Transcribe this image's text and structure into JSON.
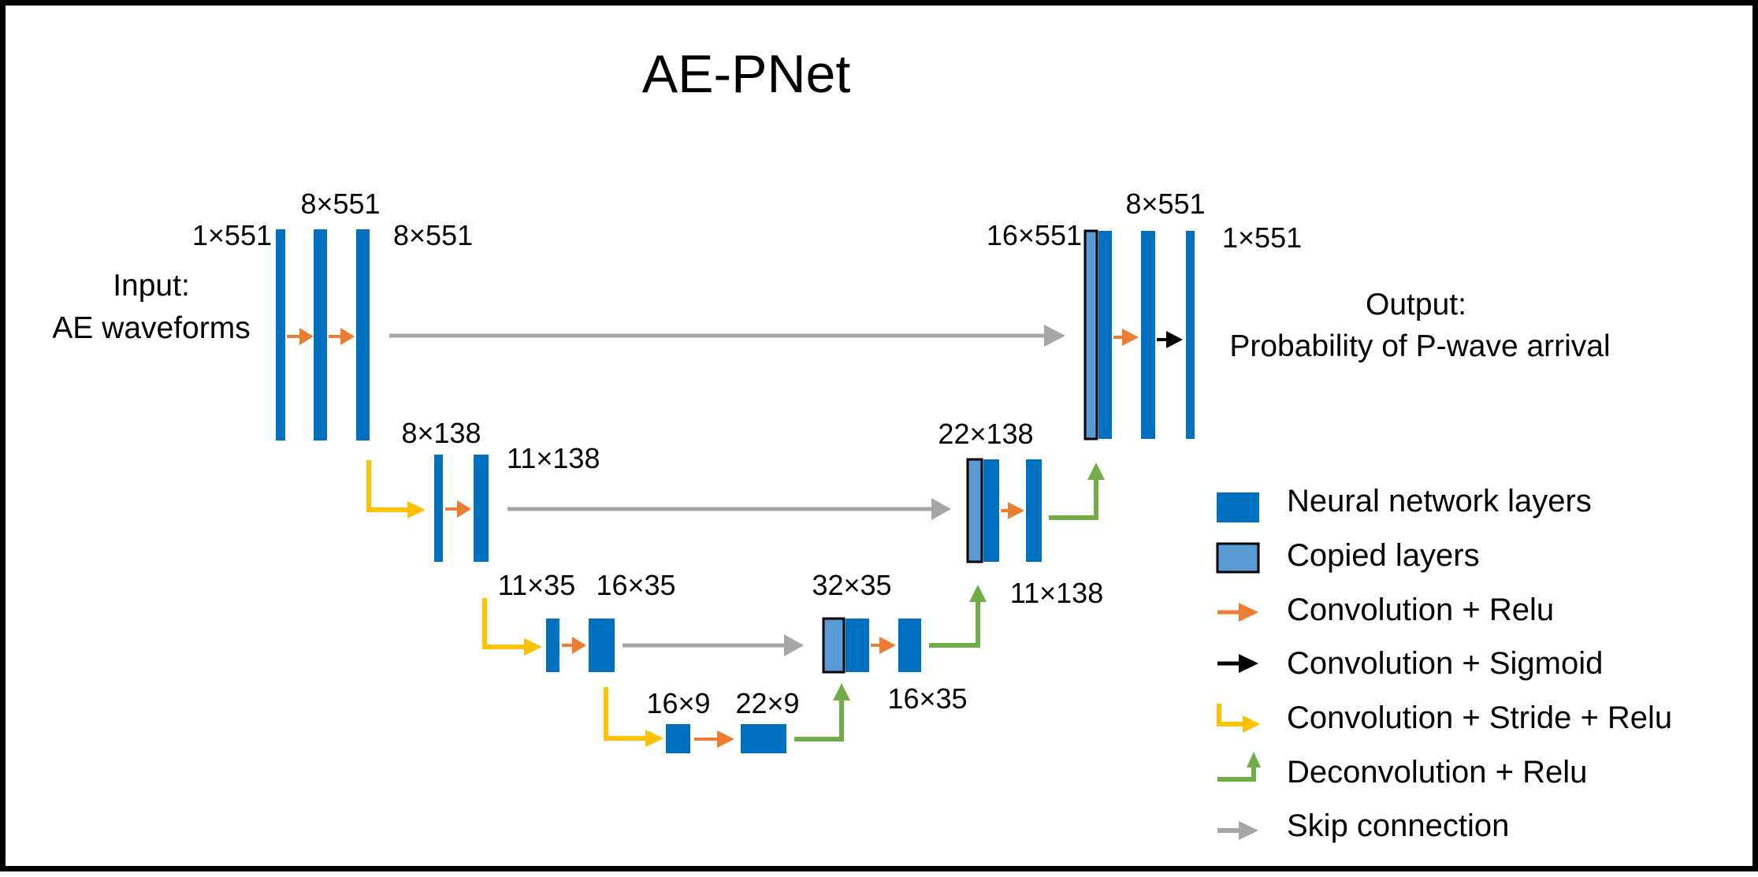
{
  "title": "AE-PNet",
  "colors": {
    "layer": "#0070C0",
    "copied_fill": "#5B9BD5",
    "conv_relu": "#ED7D31",
    "conv_sigmoid": "#000000",
    "stride": "#FFC000",
    "deconv": "#70AD47",
    "skip": "#A6A6A6"
  },
  "input": {
    "line1": "Input:",
    "line2": "AE waveforms"
  },
  "output": {
    "line1": "Output:",
    "line2": "Probability of P-wave arrival"
  },
  "dims": {
    "enc1_in": "1×551",
    "enc1_a": "8×551",
    "enc1_b": "8×551",
    "enc2_a": "8×138",
    "enc2_b": "11×138",
    "enc3_a": "11×35",
    "enc3_b": "16×35",
    "bott_a": "16×9",
    "bott_b": "22×9",
    "dec3_a": "32×35",
    "dec3_b": "16×35",
    "dec2_a": "22×138",
    "dec2_b": "11×138",
    "dec1_a": "16×551",
    "dec1_b": "8×551",
    "dec1_out": "1×551"
  },
  "legend": [
    {
      "icon": "blue-box-icon",
      "label": "Neural network layers"
    },
    {
      "icon": "copied-box-icon",
      "label": "Copied layers"
    },
    {
      "icon": "orange-arrow-icon",
      "label": "Convolution + Relu"
    },
    {
      "icon": "black-arrow-icon",
      "label": "Convolution + Sigmoid"
    },
    {
      "icon": "yellow-elbow-arrow-icon",
      "label": "Convolution + Stride + Relu"
    },
    {
      "icon": "green-elbow-arrow-icon",
      "label": "Deconvolution + Relu"
    },
    {
      "icon": "gray-arrow-icon",
      "label": "Skip connection"
    }
  ]
}
